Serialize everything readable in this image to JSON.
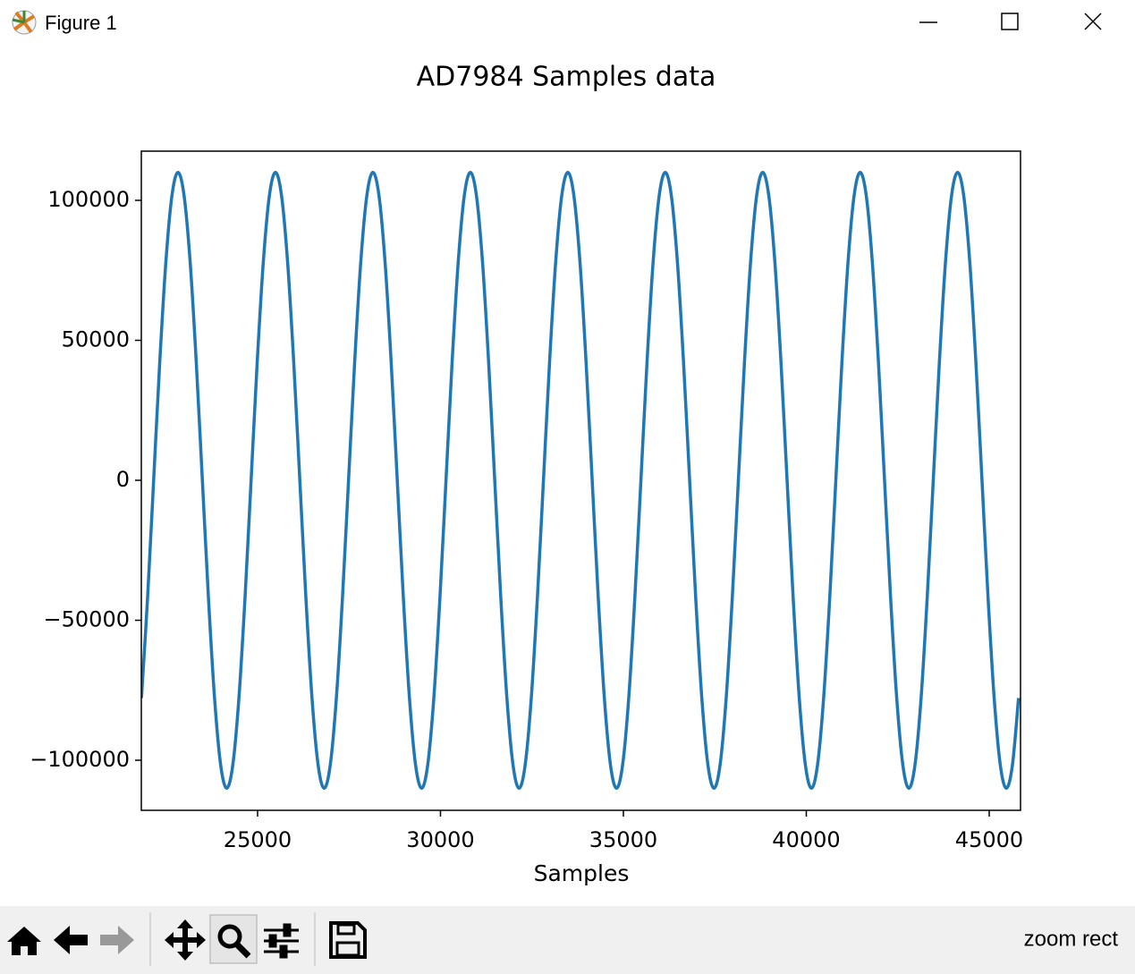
{
  "window": {
    "title": "Figure 1",
    "status": "zoom rect"
  },
  "chart_data": {
    "type": "line",
    "title": "AD7984 Samples data",
    "x_label": "Samples",
    "x": [
      21826,
      21992.5,
      22159,
      22325.5,
      22492,
      22658.5,
      22825,
      22991.5,
      23158,
      23324.5,
      23491,
      23657.5,
      23824,
      23990.5,
      24157,
      24323.5,
      24490,
      24656.5,
      24823,
      24989.5,
      25156,
      25322.5,
      25489,
      25655.5,
      25822,
      25988.5,
      26155,
      26321.5,
      26488,
      26654.5,
      26821,
      26987.5,
      27154,
      27320.5,
      27487,
      27653.5,
      27820,
      27986.5,
      28153,
      28319.5,
      28486,
      28652.5,
      28819,
      28985.5,
      29152,
      29318.5,
      29485,
      29651.5,
      29818,
      29984.5,
      30151,
      30317.5,
      30484,
      30650.5,
      30817,
      30983.5,
      31150,
      31316.5,
      31483,
      31649.5,
      31816,
      31982.5,
      32149,
      32315.5,
      32482,
      32648.5,
      32815,
      32981.5,
      33148,
      33314.5,
      33481,
      33647.5,
      33814,
      33980.5,
      34147,
      34313.5,
      34480,
      34646.5,
      34813,
      34979.5,
      35146,
      35312.5,
      35479,
      35645.5,
      35812,
      35978.5,
      36145,
      36311.5,
      36478,
      36644.5,
      36811,
      36977.5,
      37144,
      37310.5,
      37477,
      37643.5,
      37810,
      37976.5,
      38143,
      38309.5,
      38476,
      38642.5,
      38809,
      38975.5,
      39142,
      39308.5,
      39475,
      39641.5,
      39808,
      39974.5,
      40141,
      40307.5,
      40474,
      40640.5,
      40807,
      40973.5,
      41140,
      41306.5,
      41473,
      41639.5,
      41806,
      41972.5,
      42139,
      42305.5,
      42472,
      42638.5,
      42805,
      42971.5,
      43138,
      43304.5,
      43471,
      43637.5,
      43804,
      43970.5,
      44137,
      44303.5,
      44470,
      44636.5,
      44803,
      44969.5,
      45136,
      45302.5,
      45469,
      45635.5,
      45802
    ],
    "series": [
      {
        "color": "#1f77b4",
        "values": [
          -77782,
          -42095,
          0,
          42095,
          77782,
          101627,
          110000,
          101627,
          77782,
          42095,
          0,
          -42095,
          -77782,
          -101627,
          -110000,
          -101627,
          -77782,
          -42095,
          0,
          42095,
          77782,
          101627,
          110000,
          101627,
          77782,
          42095,
          0,
          -42095,
          -77782,
          -101627,
          -110000,
          -101627,
          -77782,
          -42095,
          0,
          42095,
          77782,
          101627,
          110000,
          101627,
          77782,
          42095,
          0,
          -42095,
          -77782,
          -101627,
          -110000,
          -101627,
          -77782,
          -42095,
          0,
          42095,
          77782,
          101627,
          110000,
          101627,
          77782,
          42095,
          0,
          -42095,
          -77782,
          -101627,
          -110000,
          -101627,
          -77782,
          -42095,
          0,
          42095,
          77782,
          101627,
          110000,
          101627,
          77782,
          42095,
          0,
          -42095,
          -77782,
          -101627,
          -110000,
          -101627,
          -77782,
          -42095,
          0,
          42095,
          77782,
          101627,
          110000,
          101627,
          77782,
          42095,
          0,
          -42095,
          -77782,
          -101627,
          -110000,
          -101627,
          -77782,
          -42095,
          0,
          42095,
          77782,
          101627,
          110000,
          101627,
          77782,
          42095,
          0,
          -42095,
          -77782,
          -101627,
          -110000,
          -101627,
          -77782,
          -42095,
          0,
          42095,
          77782,
          101627,
          110000,
          101627,
          77782,
          42095,
          0,
          -42095,
          -77782,
          -101627,
          -110000,
          -101627,
          -77782,
          -42095,
          0,
          42095,
          77782,
          101627,
          110000,
          101627,
          77782,
          42095,
          0,
          -42095,
          -77782,
          -101627,
          -110000,
          -101627,
          -77782
        ]
      }
    ],
    "xlim": [
      21822,
      45856
    ],
    "ylim": [
      -117890,
      117572
    ],
    "xticks": [
      25000,
      30000,
      35000,
      40000,
      45000
    ],
    "yticks": [
      {
        "value": -100000,
        "label": "−100000"
      },
      {
        "value": -50000,
        "label": "−50000"
      },
      0,
      50000,
      100000
    ]
  }
}
